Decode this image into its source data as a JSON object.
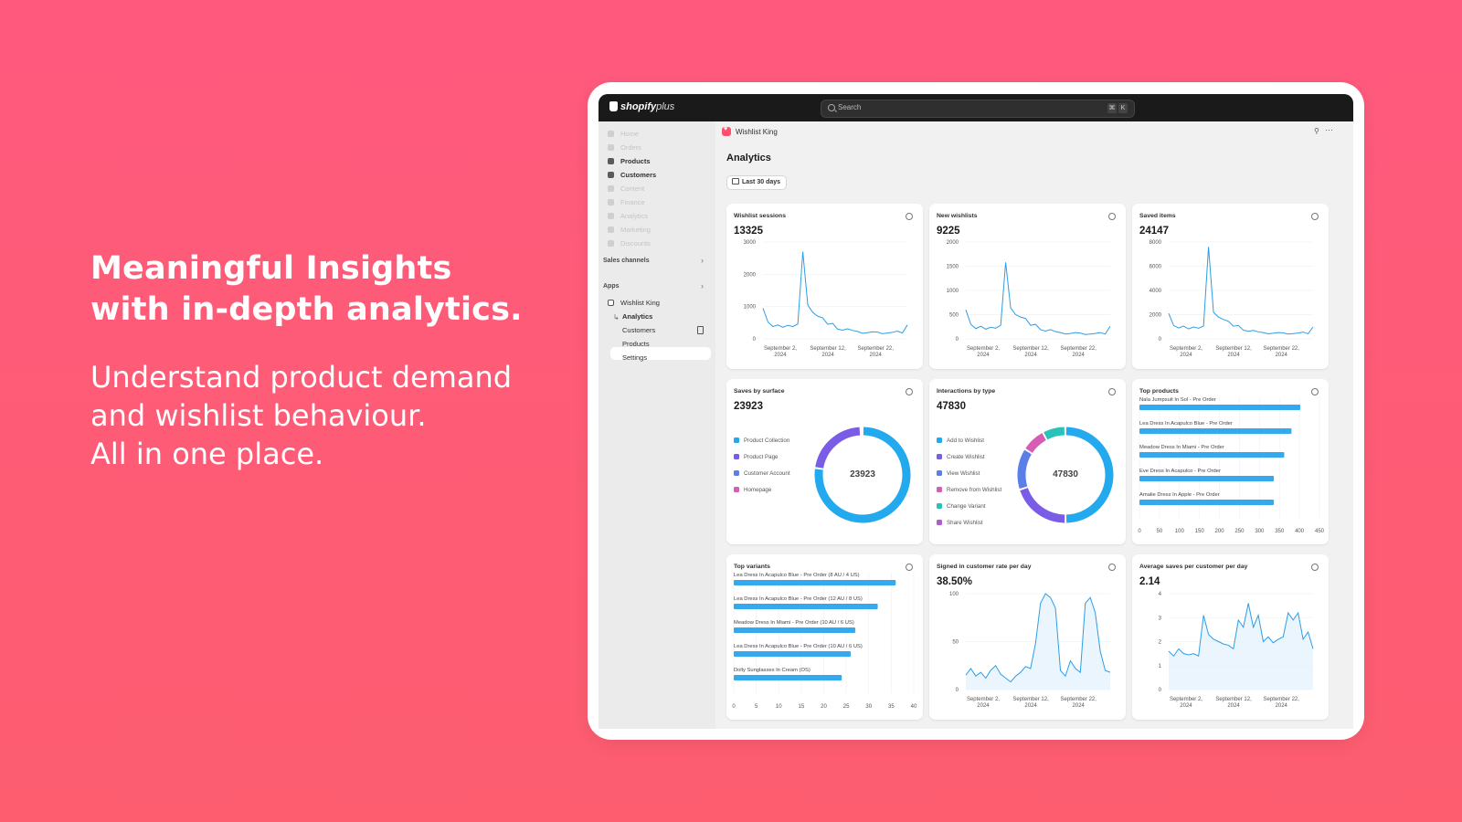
{
  "hero": {
    "title_lines": [
      "Meaningful Insights",
      "with in-depth analytics."
    ],
    "sub_lines": [
      "Understand product demand",
      "and wishlist behaviour.",
      "All in one place."
    ]
  },
  "topbar": {
    "logo": "shopify",
    "logo_plus": "plus",
    "search_placeholder": "Search",
    "shortcut_keys": [
      "⌘",
      "K"
    ]
  },
  "sidebar": {
    "items": [
      {
        "label": "Home",
        "icon": "home-icon",
        "state": "dim"
      },
      {
        "label": "Orders",
        "icon": "orders-icon",
        "state": "dim"
      },
      {
        "label": "Products",
        "icon": "tag-icon",
        "state": "bold"
      },
      {
        "label": "Customers",
        "icon": "person-icon",
        "state": "bold"
      },
      {
        "label": "Content",
        "icon": "content-icon",
        "state": "dim"
      },
      {
        "label": "Finance",
        "icon": "bank-icon",
        "state": "dim"
      },
      {
        "label": "Analytics",
        "icon": "chart-icon",
        "state": "dim"
      },
      {
        "label": "Marketing",
        "icon": "target-icon",
        "state": "dim"
      },
      {
        "label": "Discounts",
        "icon": "discount-icon",
        "state": "dim"
      }
    ],
    "sales_channels": "Sales channels",
    "apps": "Apps",
    "app_name": "Wishlist King",
    "app_sub": [
      "Analytics",
      "Customers",
      "Products",
      "Settings"
    ]
  },
  "main": {
    "app_header": "Wishlist King",
    "title": "Analytics",
    "range": "Last 30 days"
  },
  "colors": {
    "accent": "#33aaf0",
    "line": "#2e9de6",
    "bg_gradient_top": "#ff5a7e"
  },
  "cards": {
    "wishlist_sessions": {
      "title": "Wishlist sessions",
      "value": "13325"
    },
    "new_wishlists": {
      "title": "New wishlists",
      "value": "9225"
    },
    "saved_items": {
      "title": "Saved items",
      "value": "24147"
    },
    "saves_by_surface": {
      "title": "Saves by surface",
      "value": "23923",
      "center": "23923"
    },
    "interactions_by_type": {
      "title": "Interactions by type",
      "value": "47830",
      "center": "47830"
    },
    "top_products": {
      "title": "Top products"
    },
    "top_variants": {
      "title": "Top variants"
    },
    "signed_in_rate": {
      "title": "Signed in customer rate per day",
      "value": "38.50%"
    },
    "avg_saves": {
      "title": "Average saves per customer per day",
      "value": "2.14"
    }
  },
  "chart_data": [
    {
      "id": "wishlist_sessions",
      "type": "line",
      "ylim": [
        0,
        3000
      ],
      "yticks": [
        "3000",
        "2000",
        "1000",
        "0"
      ],
      "xticks": [
        [
          "September 2,",
          "2024"
        ],
        [
          "September 12,",
          "2024"
        ],
        [
          "September 22,",
          "2024"
        ]
      ],
      "values": [
        950,
        520,
        380,
        430,
        360,
        420,
        380,
        460,
        2700,
        1050,
        820,
        700,
        650,
        450,
        480,
        300,
        270,
        310,
        260,
        230,
        170,
        190,
        220,
        210,
        160,
        180,
        200,
        240,
        180,
        430
      ]
    },
    {
      "id": "new_wishlists",
      "type": "line",
      "ylim": [
        0,
        2000
      ],
      "yticks": [
        "2000",
        "1500",
        "1000",
        "500",
        "0"
      ],
      "xticks": [
        [
          "September 2,",
          "2024"
        ],
        [
          "September 12,",
          "2024"
        ],
        [
          "September 22,",
          "2024"
        ]
      ],
      "values": [
        600,
        300,
        210,
        260,
        200,
        240,
        220,
        280,
        1580,
        640,
        500,
        450,
        420,
        280,
        300,
        190,
        160,
        190,
        150,
        130,
        100,
        110,
        130,
        120,
        90,
        100,
        110,
        130,
        100,
        260
      ]
    },
    {
      "id": "saved_items",
      "type": "line",
      "ylim": [
        0,
        8000
      ],
      "yticks": [
        "8000",
        "6000",
        "4000",
        "2000",
        "0"
      ],
      "xticks": [
        [
          "September 2,",
          "2024"
        ],
        [
          "September 12,",
          "2024"
        ],
        [
          "September 22,",
          "2024"
        ]
      ],
      "values": [
        2100,
        1100,
        900,
        1050,
        820,
        980,
        880,
        1050,
        7600,
        2200,
        1800,
        1600,
        1450,
        1050,
        1100,
        720,
        620,
        700,
        580,
        520,
        420,
        460,
        520,
        500,
        400,
        430,
        480,
        560,
        420,
        980
      ]
    },
    {
      "id": "saves_by_surface",
      "type": "pie",
      "labels": [
        "Product Collection",
        "Product Page",
        "Customer Account",
        "Homepage"
      ],
      "colors": [
        "#23a9ee",
        "#7b5ce6",
        "#5b7ee8",
        "#d65cb4"
      ],
      "values": [
        18500,
        5250,
        150,
        23
      ]
    },
    {
      "id": "interactions_by_type",
      "type": "pie",
      "labels": [
        "Add to Wishlist",
        "Create Wishlist",
        "View Wishlist",
        "Remove from Wishlist",
        "Change Variant",
        "Share Wishlist"
      ],
      "colors": [
        "#23a9ee",
        "#7b5ce6",
        "#5b7ee8",
        "#d65cb4",
        "#29c1b8",
        "#b25ad4"
      ],
      "values": [
        23900,
        9600,
        6700,
        3900,
        3700,
        30
      ]
    },
    {
      "id": "top_products",
      "type": "bar",
      "orientation": "horizontal",
      "categories": [
        "Nala Jumpsuit In Sol - Pre Order",
        "Lea Dress In Acapulco Blue - Pre Order",
        "Meadow Dress In Miami - Pre Order",
        "Eve Dress In Acapulco - Pre Order",
        "Amalie Dress In Apple - Pre Order"
      ],
      "values": [
        402,
        380,
        362,
        336,
        336
      ],
      "xlim": [
        0,
        450
      ],
      "xticks": [
        "0",
        "50",
        "100",
        "150",
        "200",
        "250",
        "300",
        "350",
        "400",
        "450"
      ]
    },
    {
      "id": "top_variants",
      "type": "bar",
      "orientation": "horizontal",
      "categories": [
        "Lea Dress In Acapulco Blue - Pre Order (8 AU / 4 US)",
        "Lea Dress In Acapulco Blue - Pre Order (12 AU / 8 US)",
        "Meadow Dress In Miami - Pre Order (10 AU / 6 US)",
        "Lea Dress In Acapulco Blue - Pre Order (10 AU / 6 US)",
        "Dolly Sunglasses In Cream (OS)"
      ],
      "values": [
        36,
        32,
        27,
        26,
        24
      ],
      "xlim": [
        0,
        40
      ],
      "xticks": [
        "0",
        "5",
        "10",
        "15",
        "20",
        "25",
        "30",
        "35",
        "40"
      ]
    },
    {
      "id": "signed_in_rate",
      "type": "area",
      "ylim": [
        0,
        100
      ],
      "yticks": [
        "100",
        "50",
        "0"
      ],
      "xticks": [
        [
          "September 2,",
          "2024"
        ],
        [
          "September 12,",
          "2024"
        ],
        [
          "September 22,",
          "2024"
        ]
      ],
      "values": [
        15,
        22,
        14,
        18,
        12,
        20,
        25,
        16,
        12,
        8,
        14,
        18,
        24,
        22,
        48,
        90,
        100,
        96,
        85,
        20,
        14,
        30,
        22,
        18,
        90,
        96,
        80,
        40,
        20,
        18
      ]
    },
    {
      "id": "avg_saves",
      "type": "area",
      "ylim": [
        0,
        4
      ],
      "yticks": [
        "4",
        "3",
        "2",
        "1",
        "0"
      ],
      "xticks": [
        [
          "September 2,",
          "2024"
        ],
        [
          "September 12,",
          "2024"
        ],
        [
          "September 22,",
          "2024"
        ]
      ],
      "values": [
        1.6,
        1.4,
        1.7,
        1.5,
        1.45,
        1.5,
        1.4,
        3.1,
        2.3,
        2.1,
        2.0,
        1.9,
        1.85,
        1.7,
        2.9,
        2.6,
        3.6,
        2.6,
        3.1,
        2.0,
        2.2,
        1.95,
        2.1,
        2.2,
        3.2,
        2.9,
        3.2,
        2.1,
        2.4,
        1.7
      ]
    }
  ]
}
